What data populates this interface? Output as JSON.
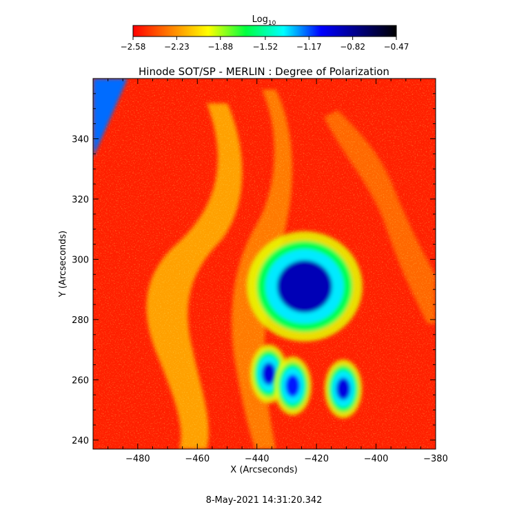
{
  "chart_data": {
    "type": "heatmap",
    "title": "Hinode SOT/SP - MERLIN : Degree of Polarization",
    "xlabel": "X (Arcseconds)",
    "ylabel": "Y (Arcseconds)",
    "xlim": [
      -495,
      -380
    ],
    "ylim": [
      237,
      360
    ],
    "xticks": [
      -480,
      -460,
      -440,
      -420,
      -400,
      -380
    ],
    "yticks": [
      240,
      260,
      280,
      300,
      320,
      340
    ],
    "colorbar": {
      "label": "Log",
      "label_subscript": "10",
      "range": [
        -2.58,
        -0.47
      ],
      "ticks": [
        -2.58,
        -2.23,
        -1.88,
        -1.52,
        -1.17,
        -0.82,
        -0.47
      ],
      "colormap": [
        "#ff0000",
        "#ff8000",
        "#ffff00",
        "#00ff40",
        "#00ffff",
        "#0000ff",
        "#000080",
        "#000000"
      ]
    },
    "grid": false,
    "features": [
      {
        "kind": "umbra",
        "x": -424,
        "y": 291,
        "value": -0.9
      },
      {
        "kind": "pore",
        "x": -436,
        "y": 262,
        "value": -1.0
      },
      {
        "kind": "pore",
        "x": -411,
        "y": 257,
        "value": -1.0
      },
      {
        "kind": "pore",
        "x": -428,
        "y": 258,
        "value": -1.1
      },
      {
        "kind": "limb",
        "x": -492,
        "y": 350,
        "value": -1.2
      }
    ]
  },
  "footer": {
    "timestamp": "8-May-2021 14:31:20.342"
  }
}
